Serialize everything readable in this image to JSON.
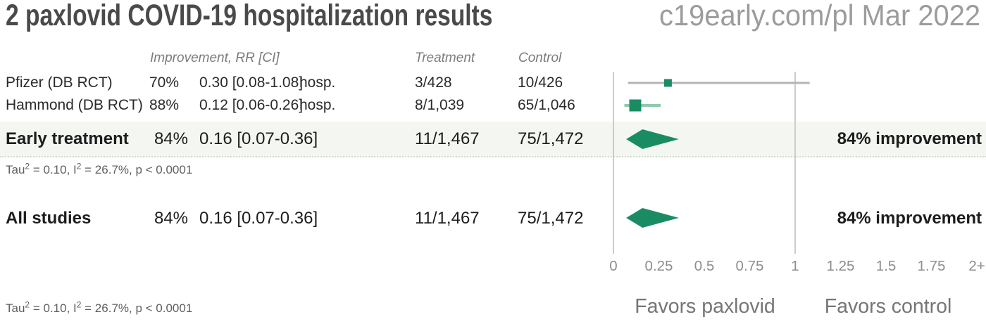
{
  "header": {
    "title": "2 paxlovid COVID-19 hospitalization results",
    "source": "c19early.com/pl Mar 2022"
  },
  "columns": {
    "improvement": "Improvement, RR [CI]",
    "treatment": "Treatment",
    "control": "Control"
  },
  "studies": [
    {
      "name": "Pfizer (DB RCT)",
      "improvement": "70%",
      "rr_ci": "0.30 [0.08-1.08]",
      "outcome": "hosp.",
      "treatment": "3/428",
      "control": "10/426"
    },
    {
      "name": "Hammond (DB RCT)",
      "improvement": "88%",
      "rr_ci": "0.12 [0.06-0.26]",
      "outcome": "hosp.",
      "treatment": "8/1,039",
      "control": "65/1,046"
    }
  ],
  "summaries": [
    {
      "name": "Early treatment",
      "improvement": "84%",
      "rr_ci": "0.16 [0.07-0.36]",
      "treatment": "11/1,467",
      "control": "75/1,472",
      "annotation": "84% improvement"
    },
    {
      "name": "All studies",
      "improvement": "84%",
      "rr_ci": "0.16 [0.07-0.36]",
      "treatment": "11/1,467",
      "control": "75/1,472",
      "annotation": "84% improvement"
    }
  ],
  "heterogeneity": {
    "pre": "Tau",
    "sup1": "2",
    "mid": " = 0.10, I",
    "sup2": "2",
    "post": " = 26.7%, p < 0.0001"
  },
  "colors": {
    "green_text": "#0a8f62",
    "marker_green": "#1a8c63",
    "band_bg": "#f4f6f2",
    "gridline": "#cccccc"
  },
  "chart_data": {
    "type": "forest",
    "title": "2 paxlovid COVID-19 hospitalization results",
    "x_axis": {
      "range": [
        0,
        2
      ],
      "tick_values": [
        0,
        0.25,
        0.5,
        0.75,
        1,
        1.25,
        1.5,
        1.75,
        2
      ],
      "tick_labels": [
        "0",
        "0.25",
        "0.5",
        "0.75",
        "1",
        "1.25",
        "1.5",
        "1.75",
        "2+"
      ],
      "gridlines_at": [
        0,
        1
      ],
      "label_left": "Favors paxlovid",
      "label_right": "Favors control"
    },
    "marker_color": "#1a8c63",
    "studies": [
      {
        "name": "Pfizer (DB RCT)",
        "rr": 0.3,
        "ci_low": 0.08,
        "ci_high": 1.08,
        "improvement_pct": 70,
        "outcome": "hosp.",
        "treatment_events": "3/428",
        "control_events": "10/426",
        "marker_size": 11,
        "ci_color": "#b4b4b4",
        "ci_width": 3
      },
      {
        "name": "Hammond (DB RCT)",
        "rr": 0.12,
        "ci_low": 0.06,
        "ci_high": 0.26,
        "improvement_pct": 88,
        "outcome": "hosp.",
        "treatment_events": "8/1,039",
        "control_events": "65/1,046",
        "marker_size": 17,
        "ci_color": "#90c9ac",
        "ci_width": 4
      }
    ],
    "summaries": [
      {
        "name": "Early treatment",
        "rr": 0.16,
        "ci_low": 0.07,
        "ci_high": 0.36,
        "improvement_pct": 84,
        "treatment_events": "11/1,467",
        "control_events": "75/1,472"
      },
      {
        "name": "All studies",
        "rr": 0.16,
        "ci_low": 0.07,
        "ci_high": 0.36,
        "improvement_pct": 84,
        "treatment_events": "11/1,467",
        "control_events": "75/1,472"
      }
    ],
    "heterogeneity": "Tau2 = 0.10, I2 = 26.7%, p < 0.0001"
  }
}
